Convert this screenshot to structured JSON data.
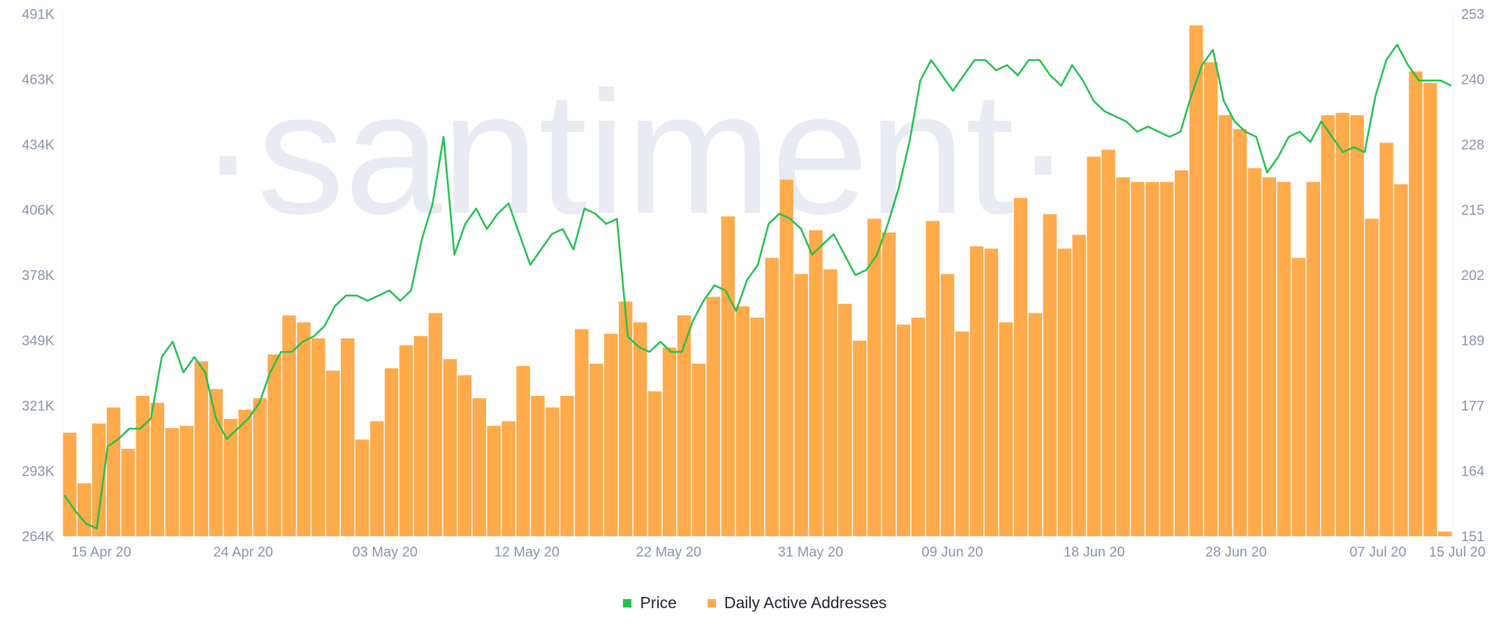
{
  "watermark": "·santiment·",
  "legend": [
    {
      "label": "Price",
      "color": "#22c14d"
    },
    {
      "label": "Daily Active Addresses",
      "color": "#ffaa4b"
    }
  ],
  "chart_data": {
    "type": "bar+line",
    "x_ticks": [
      "15 Apr 20",
      "24 Apr 20",
      "03 May 20",
      "12 May 20",
      "22 May 20",
      "31 May 20",
      "09 Jun 20",
      "18 Jun 20",
      "28 Jun 20",
      "07 Jul 20",
      "15 Jul 20"
    ],
    "y_left_ticks": [
      "264K",
      "293K",
      "321K",
      "349K",
      "378K",
      "406K",
      "434K",
      "463K",
      "491K"
    ],
    "y_left_range": [
      264000,
      491000
    ],
    "y_right_ticks": [
      "151",
      "164",
      "177",
      "189",
      "202",
      "215",
      "228",
      "240",
      "253"
    ],
    "y_right_range": [
      151,
      253
    ],
    "grid": false,
    "legend_position": "bottom-center",
    "series": [
      {
        "name": "Daily Active Addresses",
        "kind": "bar",
        "axis": "left",
        "color": "#ffaa4b",
        "values": [
          309000,
          287000,
          313000,
          320000,
          302000,
          325000,
          322000,
          311000,
          312000,
          340000,
          328000,
          315000,
          319000,
          324000,
          343000,
          360000,
          357000,
          350000,
          336000,
          350000,
          306000,
          314000,
          337000,
          347000,
          351000,
          361000,
          341000,
          334000,
          324000,
          312000,
          314000,
          338000,
          325000,
          320000,
          325000,
          354000,
          339000,
          352000,
          366000,
          357000,
          327000,
          346000,
          360000,
          339000,
          368000,
          403000,
          364000,
          359000,
          385000,
          419000,
          378000,
          397000,
          380000,
          365000,
          349000,
          402000,
          396000,
          356000,
          359000,
          401000,
          378000,
          353000,
          390000,
          389000,
          357000,
          411000,
          361000,
          404000,
          389000,
          395000,
          429000,
          432000,
          420000,
          418000,
          418000,
          418000,
          423000,
          486000,
          470000,
          447000,
          441000,
          424000,
          420000,
          418000,
          385000,
          418000,
          447000,
          448000,
          447000,
          402000,
          435000,
          417000,
          466000,
          461000,
          266000
        ]
      },
      {
        "name": "Price",
        "kind": "line",
        "axis": "right",
        "color": "#22c14d",
        "values": [
          159.0,
          156.0,
          153.5,
          152.5,
          168.5,
          170.0,
          172.0,
          172.0,
          174.0,
          186.0,
          189.0,
          183.0,
          186.0,
          183.0,
          174.0,
          170.0,
          172.0,
          174.0,
          177.0,
          183.0,
          187.0,
          187.0,
          189.0,
          190.0,
          192.0,
          196.0,
          198.0,
          198.0,
          197.0,
          198.0,
          199.0,
          197.0,
          199.0,
          209.0,
          216.0,
          229.0,
          206.0,
          212.0,
          215.0,
          211.0,
          214.0,
          216.0,
          210.0,
          204.0,
          207.0,
          210.0,
          211.0,
          207.0,
          215.0,
          214.0,
          212.0,
          213.0,
          190.0,
          188.0,
          187.0,
          189.0,
          187.0,
          187.0,
          193.0,
          197.0,
          200.0,
          199.0,
          195.0,
          201.0,
          204.0,
          212.0,
          214.0,
          213.0,
          211.0,
          206.0,
          208.0,
          210.0,
          206.0,
          202.0,
          203.0,
          206.0,
          212.0,
          219.0,
          228.0,
          240.0,
          244.0,
          241.0,
          238.0,
          241.0,
          244.0,
          244.0,
          242.0,
          243.0,
          241.0,
          244.0,
          244.0,
          241.0,
          239.0,
          243.0,
          240.0,
          236.0,
          234.0,
          233.0,
          232.0,
          230.0,
          231.0,
          230.0,
          229.0,
          230.0,
          237.0,
          243.0,
          246.0,
          236.0,
          232.0,
          230.0,
          229.0,
          222.0,
          225.0,
          229.0,
          230.0,
          228.0,
          232.0,
          229.0,
          226.0,
          227.0,
          226.0,
          237.0,
          244.0,
          247.0,
          243.0,
          240.0,
          240.0,
          240.0,
          239.0
        ]
      }
    ]
  }
}
